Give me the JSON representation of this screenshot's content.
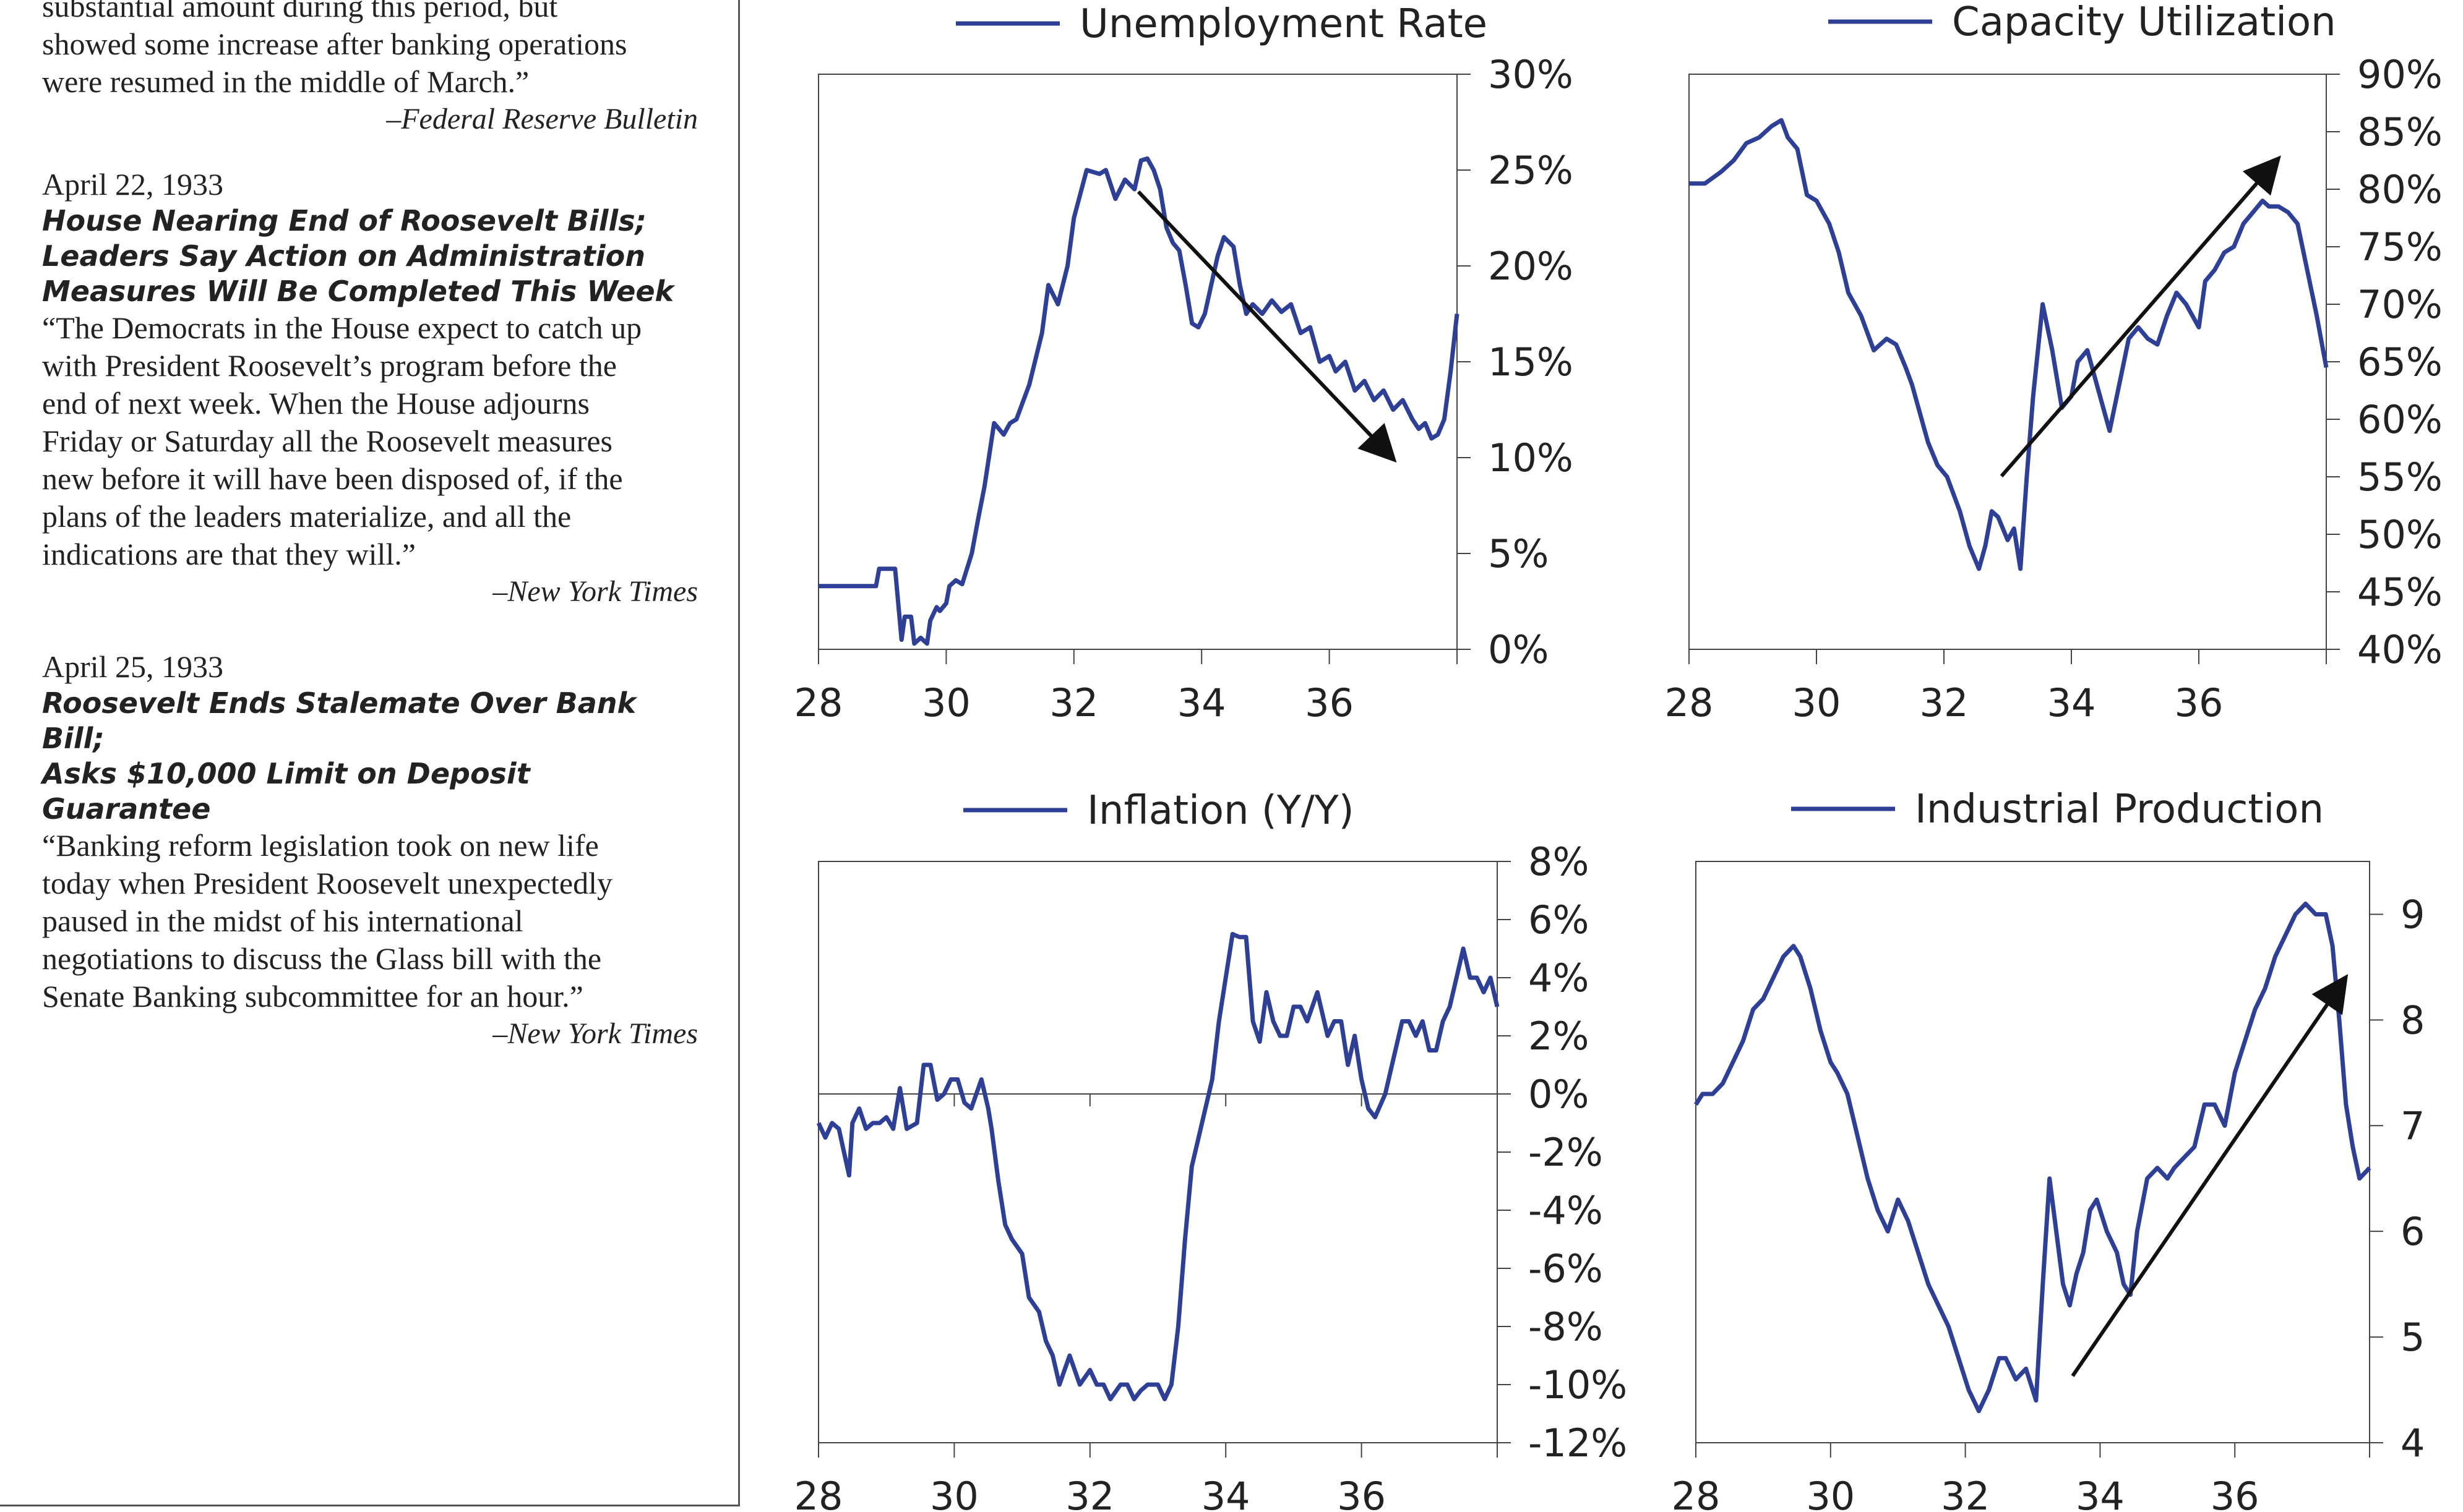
{
  "sidebar": {
    "top_excerpt": {
      "lines": [
        "substantial amount during this period, but",
        "showed some increase after banking operations",
        "were resumed in the middle of March.”"
      ],
      "source": "–Federal Reserve Bulletin"
    },
    "entry1": {
      "date": "April 22, 1933",
      "headline_lines": [
        "House Nearing End of Roosevelt Bills;",
        "Leaders Say Action on Administration",
        "Measures Will Be Completed This Week"
      ],
      "body_lines": [
        "“The Democrats in the House expect to catch up",
        "with President Roosevelt’s program before the",
        "end of next week. When the House adjourns",
        "Friday or Saturday all the Roosevelt measures",
        "new before it will have been disposed of, if the",
        "plans of the leaders materialize, and all the",
        "indications are that they will.”"
      ],
      "source": "–New York Times"
    },
    "entry2": {
      "date": "April 25, 1933",
      "headline_lines": [
        "Roosevelt Ends Stalemate Over Bank Bill;",
        "Asks $10,000 Limit on Deposit Guarantee"
      ],
      "body_lines": [
        "“Banking reform legislation took on new life",
        "today when President Roosevelt unexpectedly",
        "paused in the midst of his international",
        "negotiations to discuss the Glass bill with the",
        "Senate Banking subcommittee for an hour.”"
      ],
      "source": "–New York Times"
    }
  },
  "chart_data": [
    {
      "type": "line",
      "legend": "Unemployment Rate",
      "x_ticks": [
        "28",
        "30",
        "32",
        "34",
        "36"
      ],
      "y_ticks": [
        "0%",
        "5%",
        "10%",
        "15%",
        "20%",
        "25%",
        "30%"
      ],
      "ylim": [
        0,
        30
      ],
      "xlim": [
        28,
        38
      ],
      "series_color": "#2e3f96",
      "x": [
        28.0,
        28.9,
        28.95,
        29.2,
        29.3,
        29.35,
        29.45,
        29.5,
        29.6,
        29.7,
        29.75,
        29.85,
        29.9,
        30.0,
        30.05,
        30.15,
        30.25,
        30.4,
        30.5,
        30.6,
        30.75,
        30.9,
        31.0,
        31.1,
        31.3,
        31.5,
        31.6,
        31.75,
        31.9,
        32.0,
        32.2,
        32.4,
        32.5,
        32.65,
        32.8,
        32.95,
        33.05,
        33.15,
        33.25,
        33.35,
        33.45,
        33.55,
        33.65,
        33.75,
        33.85,
        33.95,
        34.05,
        34.15,
        34.25,
        34.35,
        34.5,
        34.6,
        34.7,
        34.8,
        34.95,
        35.1,
        35.25,
        35.4,
        35.55,
        35.7,
        35.85,
        36.0,
        36.1,
        36.25,
        36.4,
        36.55,
        36.7,
        36.85,
        37.0,
        37.15,
        37.3,
        37.4,
        37.5,
        37.6,
        37.7,
        37.8,
        37.9,
        38.0
      ],
      "y": [
        3.3,
        3.3,
        4.2,
        4.2,
        0.5,
        1.7,
        1.7,
        0.3,
        0.6,
        0.3,
        1.5,
        2.2,
        2.0,
        2.4,
        3.3,
        3.6,
        3.4,
        5.0,
        6.8,
        8.5,
        11.8,
        11.2,
        11.8,
        12.0,
        13.8,
        16.5,
        19.0,
        18.0,
        20.0,
        22.5,
        25.0,
        24.8,
        25.0,
        23.5,
        24.5,
        24.0,
        25.5,
        25.6,
        25.0,
        24.0,
        22.0,
        21.2,
        20.8,
        19.0,
        17.0,
        16.8,
        17.5,
        19.0,
        20.5,
        21.5,
        21.0,
        19.0,
        17.5,
        18.0,
        17.5,
        18.2,
        17.6,
        18.0,
        16.5,
        16.8,
        15.0,
        15.3,
        14.5,
        15.0,
        13.5,
        14.0,
        13.0,
        13.5,
        12.5,
        13.0,
        12.0,
        11.5,
        11.8,
        11.0,
        11.2,
        12.0,
        14.5,
        17.5
      ]
    },
    {
      "type": "line",
      "legend": "Capacity Utilization",
      "x_ticks": [
        "28",
        "30",
        "32",
        "34",
        "36"
      ],
      "y_ticks": [
        "40%",
        "45%",
        "50%",
        "55%",
        "60%",
        "65%",
        "70%",
        "75%",
        "80%",
        "85%",
        "90%"
      ],
      "ylim": [
        40,
        90
      ],
      "xlim": [
        28,
        38
      ],
      "series_color": "#2e3f96",
      "x": [
        28.0,
        28.25,
        28.5,
        28.7,
        28.9,
        29.1,
        29.3,
        29.45,
        29.55,
        29.7,
        29.85,
        30.0,
        30.1,
        30.2,
        30.35,
        30.5,
        30.7,
        30.9,
        31.1,
        31.25,
        31.4,
        31.5,
        31.6,
        31.75,
        31.9,
        32.05,
        32.25,
        32.4,
        32.55,
        32.65,
        32.75,
        32.85,
        33.0,
        33.1,
        33.2,
        33.3,
        33.4,
        33.55,
        33.7,
        33.85,
        34.0,
        34.1,
        34.25,
        34.35,
        34.5,
        34.6,
        34.75,
        34.9,
        35.05,
        35.2,
        35.35,
        35.5,
        35.65,
        35.8,
        36.0,
        36.1,
        36.25,
        36.4,
        36.55,
        36.7,
        36.85,
        37.0,
        37.1,
        37.25,
        37.4,
        37.55,
        37.7,
        37.85,
        38.0
      ],
      "y": [
        80.5,
        80.5,
        81.5,
        82.5,
        84.0,
        84.5,
        85.5,
        86.0,
        84.5,
        83.5,
        79.5,
        79.0,
        78.0,
        77.0,
        74.5,
        71.0,
        69.0,
        66.0,
        67.0,
        66.5,
        64.5,
        63.0,
        61.0,
        58.0,
        56.0,
        55.0,
        52.0,
        49.0,
        47.0,
        49.0,
        52.0,
        51.5,
        49.5,
        50.5,
        47.0,
        55.0,
        62.0,
        70.0,
        66.0,
        61.0,
        62.0,
        65.0,
        66.0,
        64.0,
        61.0,
        59.0,
        63.0,
        67.0,
        68.0,
        67.0,
        66.5,
        69.0,
        71.0,
        70.0,
        68.0,
        72.0,
        73.0,
        74.5,
        75.0,
        77.0,
        78.0,
        79.0,
        78.5,
        78.5,
        78.0,
        77.0,
        73.0,
        69.0,
        64.5
      ]
    },
    {
      "type": "line",
      "legend": "Inflation (Y/Y)",
      "x_ticks": [
        "28",
        "30",
        "32",
        "34",
        "36"
      ],
      "y_ticks": [
        "-12%",
        "-10%",
        "-8%",
        "-6%",
        "-4%",
        "-2%",
        "0%",
        "2%",
        "4%",
        "6%",
        "8%"
      ],
      "ylim": [
        -12,
        8
      ],
      "xlim": [
        28,
        38
      ],
      "series_color": "#2e3f96",
      "x": [
        28.0,
        28.1,
        28.2,
        28.3,
        28.45,
        28.5,
        28.6,
        28.7,
        28.8,
        28.9,
        29.0,
        29.1,
        29.2,
        29.3,
        29.45,
        29.55,
        29.65,
        29.75,
        29.85,
        29.95,
        30.05,
        30.15,
        30.25,
        30.4,
        30.5,
        30.55,
        30.65,
        30.75,
        30.85,
        31.0,
        31.1,
        31.25,
        31.35,
        31.45,
        31.55,
        31.7,
        31.85,
        32.0,
        32.1,
        32.2,
        32.3,
        32.45,
        32.55,
        32.65,
        32.75,
        32.85,
        33.0,
        33.1,
        33.2,
        33.3,
        33.4,
        33.5,
        33.65,
        33.8,
        33.9,
        34.0,
        34.1,
        34.2,
        34.3,
        34.4,
        34.5,
        34.6,
        34.7,
        34.8,
        34.9,
        35.0,
        35.1,
        35.2,
        35.35,
        35.5,
        35.6,
        35.7,
        35.8,
        35.9,
        36.0,
        36.1,
        36.2,
        36.35,
        36.5,
        36.6,
        36.7,
        36.8,
        36.9,
        37.0,
        37.1,
        37.2,
        37.3,
        37.4,
        37.5,
        37.6,
        37.7,
        37.8,
        37.9,
        38.0
      ],
      "y": [
        -1.0,
        -1.5,
        -1.0,
        -1.2,
        -2.8,
        -1.0,
        -0.5,
        -1.2,
        -1.0,
        -1.0,
        -0.8,
        -1.2,
        0.2,
        -1.2,
        -1.0,
        1.0,
        1.0,
        -0.2,
        0.0,
        0.5,
        0.5,
        -0.3,
        -0.5,
        0.5,
        -0.5,
        -1.2,
        -3.0,
        -4.5,
        -5.0,
        -5.5,
        -7.0,
        -7.5,
        -8.5,
        -9.0,
        -10.0,
        -9.0,
        -10.0,
        -9.5,
        -10.0,
        -10.0,
        -10.5,
        -10.0,
        -10.0,
        -10.5,
        -10.2,
        -10.0,
        -10.0,
        -10.5,
        -10.0,
        -8.0,
        -5.0,
        -2.5,
        -1.0,
        0.5,
        2.5,
        4.0,
        5.5,
        5.4,
        5.4,
        2.5,
        1.8,
        3.5,
        2.5,
        2.0,
        2.0,
        3.0,
        3.0,
        2.5,
        3.5,
        2.0,
        2.5,
        2.5,
        1.0,
        2.0,
        0.5,
        -0.5,
        -0.8,
        0.0,
        1.5,
        2.5,
        2.5,
        2.0,
        2.5,
        1.5,
        1.5,
        2.5,
        3.0,
        4.0,
        5.0,
        4.0,
        4.0,
        3.5,
        4.0,
        3.0
      ]
    },
    {
      "type": "line",
      "legend": "Industrial Production",
      "x_ticks": [
        "28",
        "30",
        "32",
        "34",
        "36"
      ],
      "y_ticks": [
        "4",
        "5",
        "6",
        "7",
        "8",
        "9"
      ],
      "ylim": [
        4,
        9.5
      ],
      "xlim": [
        28,
        38
      ],
      "series_color": "#2e3f96",
      "x": [
        28.0,
        28.1,
        28.25,
        28.4,
        28.55,
        28.7,
        28.85,
        29.0,
        29.15,
        29.3,
        29.45,
        29.55,
        29.7,
        29.85,
        30.0,
        30.1,
        30.25,
        30.4,
        30.55,
        30.7,
        30.85,
        31.0,
        31.15,
        31.3,
        31.45,
        31.6,
        31.75,
        31.9,
        32.05,
        32.2,
        32.35,
        32.5,
        32.6,
        32.75,
        32.9,
        33.05,
        33.15,
        33.25,
        33.35,
        33.45,
        33.55,
        33.65,
        33.75,
        33.85,
        33.95,
        34.1,
        34.25,
        34.35,
        34.45,
        34.55,
        34.7,
        34.85,
        35.0,
        35.1,
        35.25,
        35.4,
        35.55,
        35.7,
        35.85,
        36.0,
        36.15,
        36.3,
        36.45,
        36.6,
        36.75,
        36.9,
        37.05,
        37.2,
        37.35,
        37.45,
        37.55,
        37.65,
        37.75,
        37.85,
        38.0
      ],
      "y": [
        7.2,
        7.3,
        7.3,
        7.4,
        7.6,
        7.8,
        8.1,
        8.2,
        8.4,
        8.6,
        8.7,
        8.6,
        8.3,
        7.9,
        7.6,
        7.5,
        7.3,
        6.9,
        6.5,
        6.2,
        6.0,
        6.3,
        6.1,
        5.8,
        5.5,
        5.3,
        5.1,
        4.8,
        4.5,
        4.3,
        4.5,
        4.8,
        4.8,
        4.6,
        4.7,
        4.4,
        5.5,
        6.5,
        6.0,
        5.5,
        5.3,
        5.6,
        5.8,
        6.2,
        6.3,
        6.0,
        5.8,
        5.5,
        5.4,
        6.0,
        6.5,
        6.6,
        6.5,
        6.6,
        6.7,
        6.8,
        7.2,
        7.2,
        7.0,
        7.5,
        7.8,
        8.1,
        8.3,
        8.6,
        8.8,
        9.0,
        9.1,
        9.0,
        9.0,
        8.7,
        8.0,
        7.2,
        6.8,
        6.5,
        6.6
      ]
    }
  ]
}
